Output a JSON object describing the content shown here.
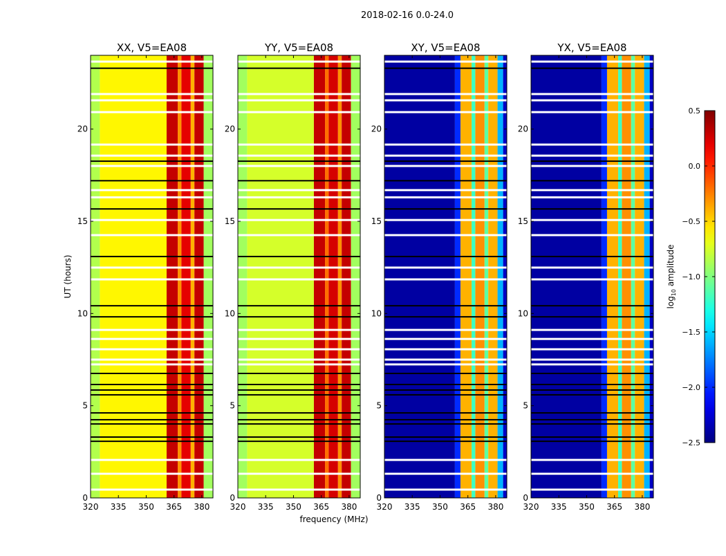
{
  "chart_data": {
    "type": "heatmap",
    "suptitle": "2018-02-16 0.0-24.0",
    "xlabel": "frequency (MHz)",
    "ylabel": "UT (hours)",
    "xlim": [
      320,
      386
    ],
    "ylim": [
      0,
      24
    ],
    "xticks": [
      "320",
      "335",
      "350",
      "365",
      "380"
    ],
    "xtick_values": [
      320,
      335,
      350,
      365,
      380
    ],
    "yticks": [
      "0",
      "5",
      "10",
      "15",
      "20"
    ],
    "ytick_values": [
      0,
      5,
      10,
      15,
      20
    ],
    "panels": [
      {
        "title": "XX, V5=EA08",
        "bands": [
          [
            320,
            325,
            -0.85
          ],
          [
            325,
            361,
            -0.6
          ],
          [
            361,
            367,
            0.3
          ],
          [
            367,
            369,
            -0.3
          ],
          [
            369,
            374,
            0.2
          ],
          [
            374,
            376,
            -0.4
          ],
          [
            376,
            381,
            0.3
          ],
          [
            381,
            386,
            -0.9
          ]
        ]
      },
      {
        "title": "YY, V5=EA08",
        "bands": [
          [
            320,
            325,
            -0.9
          ],
          [
            325,
            361,
            -0.75
          ],
          [
            361,
            367,
            0.3
          ],
          [
            367,
            369,
            -0.2
          ],
          [
            369,
            374,
            0.25
          ],
          [
            374,
            376,
            -0.3
          ],
          [
            376,
            381,
            0.3
          ],
          [
            381,
            386,
            -0.9
          ]
        ]
      },
      {
        "title": "XY, V5=EA08",
        "bands": [
          [
            320,
            358,
            -2.4
          ],
          [
            358,
            361,
            -2.0
          ],
          [
            361,
            367,
            -0.4
          ],
          [
            367,
            369,
            -1.2
          ],
          [
            369,
            374,
            -0.3
          ],
          [
            374,
            376,
            -1.1
          ],
          [
            376,
            381,
            -0.4
          ],
          [
            381,
            384,
            -1.6
          ],
          [
            384,
            386,
            -2.3
          ]
        ]
      },
      {
        "title": "YX, V5=EA08",
        "bands": [
          [
            320,
            358,
            -2.4
          ],
          [
            358,
            361,
            -2.0
          ],
          [
            361,
            367,
            -0.4
          ],
          [
            367,
            369,
            -1.2
          ],
          [
            369,
            374,
            -0.3
          ],
          [
            374,
            376,
            -1.1
          ],
          [
            376,
            381,
            -0.4
          ],
          [
            381,
            384,
            -1.6
          ],
          [
            384,
            386,
            -2.3
          ]
        ]
      }
    ],
    "flagged_hours_white": [
      23.66,
      21.9,
      21.56,
      20.92,
      19.16,
      18.56,
      18.0,
      16.69,
      16.3,
      15.07,
      14.25,
      12.49,
      11.85,
      9.11,
      8.62,
      8.06,
      7.5,
      7.24,
      2.06,
      1.31,
      0.45
    ],
    "flagged_hours_black": [
      23.3,
      18.26,
      17.2,
      15.67,
      13.09,
      10.42,
      9.82,
      6.75,
      6.15,
      5.85,
      5.59,
      4.61,
      4.24,
      4.01,
      3.3,
      3.07
    ],
    "colorbar": {
      "label": "log10 amplitude",
      "range": [
        -2.5,
        0.5
      ],
      "ticks": [
        "0.5",
        "0.0",
        "−0.5",
        "−1.0",
        "−1.5",
        "−2.0",
        "−2.5"
      ],
      "tick_values": [
        0.5,
        0.0,
        -0.5,
        -1.0,
        -1.5,
        -2.0,
        -2.5
      ],
      "colormap": "jet"
    }
  }
}
